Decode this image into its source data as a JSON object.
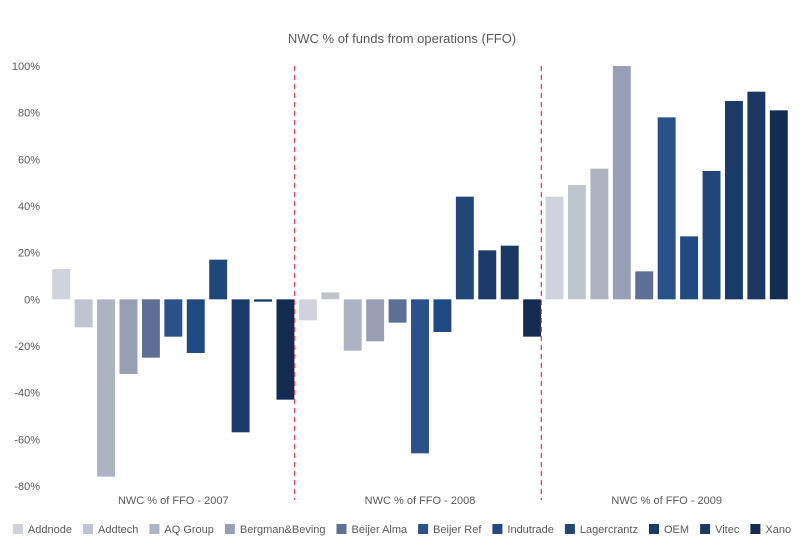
{
  "chart_data": {
    "type": "bar",
    "title": "NWC % of funds from operations (FFO)",
    "xlabel": "",
    "ylabel": "",
    "ylim": [
      -80,
      100
    ],
    "yticks": [
      100,
      80,
      60,
      40,
      20,
      0,
      -20,
      -40,
      -60,
      -80
    ],
    "ytick_labels": [
      "100%",
      "80%",
      "60%",
      "40%",
      "20%",
      "0%",
      "-20%",
      "-40%",
      "-60%",
      "-80%"
    ],
    "grid": false,
    "legend_position": "bottom",
    "categories": [
      "NWC % of FFO - 2007",
      "NWC % of FFO - 2008",
      "NWC % of FFO - 2009"
    ],
    "series": [
      {
        "name": "Addnode",
        "color": "#d0d3dc",
        "values": [
          13,
          -9,
          44
        ]
      },
      {
        "name": "Addtech",
        "color": "#c0c4cf",
        "values": [
          -12,
          3,
          49
        ]
      },
      {
        "name": "AQ Group",
        "color": "#aeb3c2",
        "values": [
          -76,
          -22,
          56
        ]
      },
      {
        "name": "Bergman&Beving",
        "color": "#989fb5",
        "values": [
          -32,
          -18,
          100
        ]
      },
      {
        "name": "Beijer Alma",
        "color": "#5d6f94",
        "values": [
          -25,
          -10,
          12
        ]
      },
      {
        "name": "Beijer Ref",
        "color": "#2a5189",
        "values": [
          -16,
          -66,
          78
        ]
      },
      {
        "name": "Indutrade",
        "color": "#204a82",
        "values": [
          -23,
          -14,
          27
        ]
      },
      {
        "name": "Lagercrantz",
        "color": "#1f4778",
        "values": [
          17,
          44,
          55
        ]
      },
      {
        "name": "OEM",
        "color": "#1a3b69",
        "values": [
          -57,
          21,
          85
        ]
      },
      {
        "name": "Vitec",
        "color": "#1b3863",
        "values": [
          -1,
          23,
          89
        ]
      },
      {
        "name": "Xano",
        "color": "#152c52",
        "values": [
          -43,
          -16,
          81
        ]
      }
    ]
  }
}
